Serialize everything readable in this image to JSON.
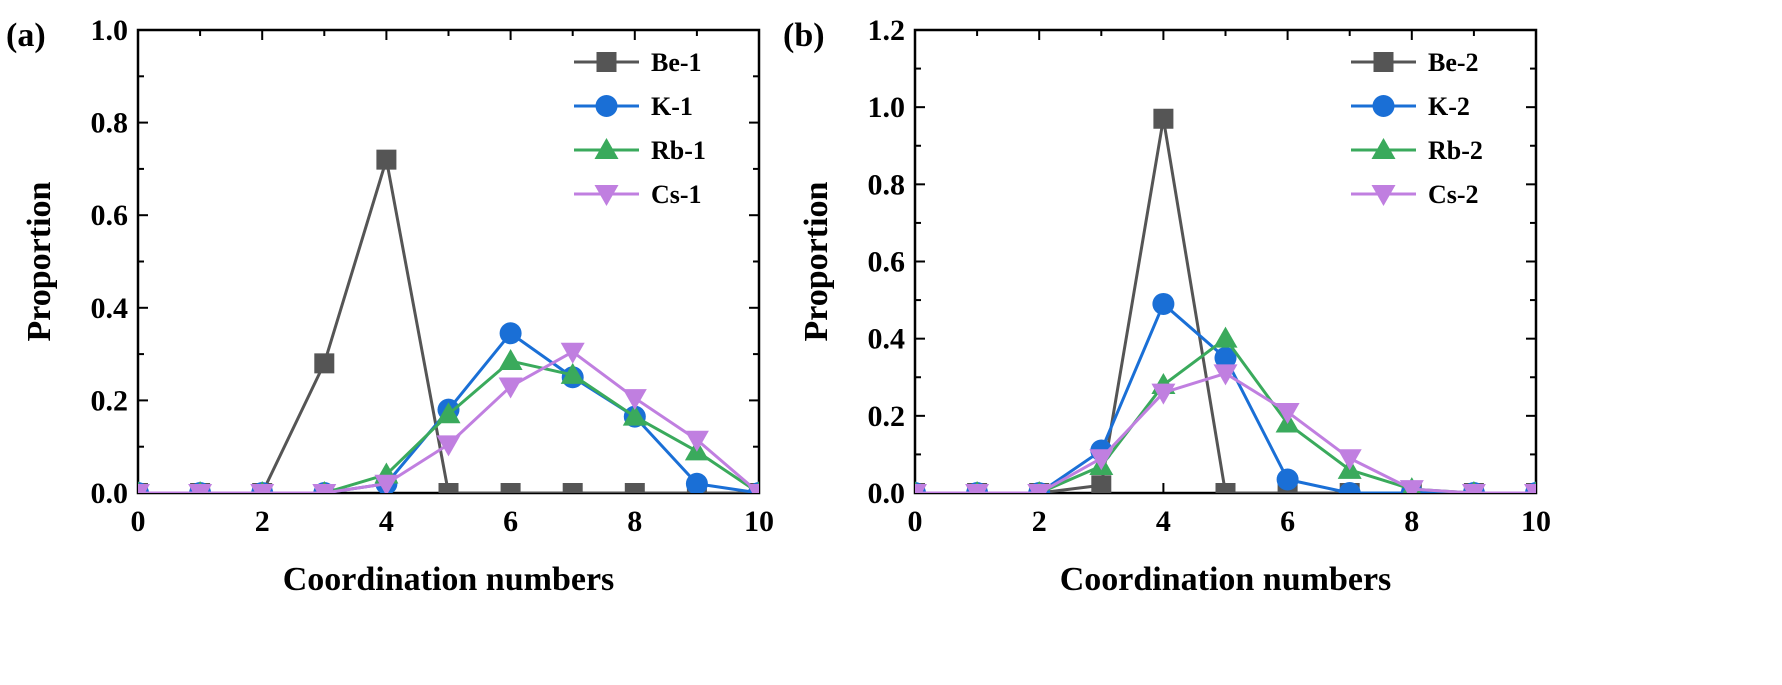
{
  "chart_data": [
    {
      "panel": "(a)",
      "type": "line",
      "xlabel": "Coordination numbers",
      "ylabel": "Proportion",
      "xlim": [
        0,
        10
      ],
      "ylim": [
        0,
        1.0
      ],
      "xticks": [
        0,
        2,
        4,
        6,
        8,
        10
      ],
      "yticks": [
        0.0,
        0.2,
        0.4,
        0.6,
        0.8,
        1.0
      ],
      "x": [
        0,
        1,
        2,
        3,
        4,
        5,
        6,
        7,
        8,
        9,
        10
      ],
      "legend_position": "top-right",
      "series": [
        {
          "name": "Be-1",
          "color": "#555555",
          "marker": "square",
          "values": [
            0,
            0,
            0,
            0.28,
            0.72,
            0,
            0,
            0,
            0,
            0,
            0
          ]
        },
        {
          "name": "K-1",
          "color": "#1a6fd6",
          "marker": "circle",
          "values": [
            0,
            0,
            0,
            0,
            0.02,
            0.18,
            0.345,
            0.25,
            0.165,
            0.02,
            0
          ]
        },
        {
          "name": "Rb-1",
          "color": "#3aaa5c",
          "marker": "triangle-up",
          "values": [
            0,
            0,
            0,
            0,
            0.04,
            0.17,
            0.285,
            0.255,
            0.165,
            0.09,
            0
          ]
        },
        {
          "name": "Cs-1",
          "color": "#c07fe0",
          "marker": "triangle-down",
          "values": [
            0,
            0,
            0,
            0,
            0.02,
            0.105,
            0.23,
            0.305,
            0.205,
            0.115,
            0
          ]
        }
      ]
    },
    {
      "panel": "(b)",
      "type": "line",
      "xlabel": "Coordination numbers",
      "ylabel": "Proportion",
      "xlim": [
        0,
        10
      ],
      "ylim": [
        0,
        1.2
      ],
      "xticks": [
        0,
        2,
        4,
        6,
        8,
        10
      ],
      "yticks": [
        0.0,
        0.2,
        0.4,
        0.6,
        0.8,
        1.0,
        1.2
      ],
      "x": [
        0,
        1,
        2,
        3,
        4,
        5,
        6,
        7,
        8,
        9,
        10
      ],
      "legend_position": "top-right",
      "series": [
        {
          "name": "Be-2",
          "color": "#555555",
          "marker": "square",
          "values": [
            0,
            0,
            0,
            0.02,
            0.97,
            0,
            0,
            0,
            0,
            0,
            0
          ]
        },
        {
          "name": "K-2",
          "color": "#1a6fd6",
          "marker": "circle",
          "values": [
            0,
            0,
            0,
            0.11,
            0.49,
            0.35,
            0.035,
            0,
            0,
            0,
            0
          ]
        },
        {
          "name": "Rb-2",
          "color": "#3aaa5c",
          "marker": "triangle-up",
          "values": [
            0,
            0,
            0,
            0.07,
            0.28,
            0.4,
            0.18,
            0.06,
            0.01,
            0,
            0
          ]
        },
        {
          "name": "Cs-2",
          "color": "#c07fe0",
          "marker": "triangle-down",
          "values": [
            0,
            0,
            0,
            0.09,
            0.26,
            0.31,
            0.21,
            0.09,
            0.01,
            0,
            0
          ]
        }
      ]
    }
  ]
}
